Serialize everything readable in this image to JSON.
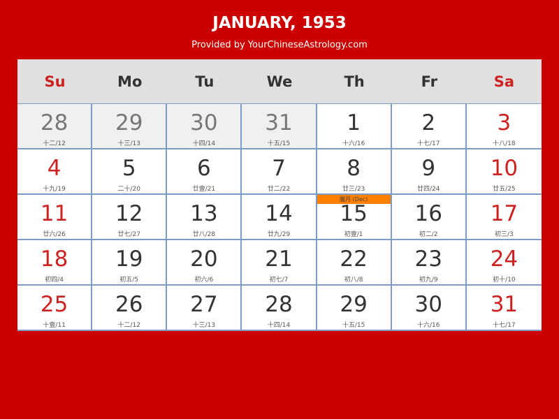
{
  "header": {
    "title": "JANUARY, 1953",
    "subtitle": "Provided by YourChineseAstrology.com"
  },
  "colors": {
    "background": "#cc0000",
    "weekend": "#cc2222",
    "month_marker": "#ff7f00",
    "grid_line": "#7a9cc6"
  },
  "weekdays": [
    "Su",
    "Mo",
    "Tu",
    "We",
    "Th",
    "Fr",
    "Sa"
  ],
  "days": [
    {
      "day": "28",
      "lunar": "十二/12",
      "other": true
    },
    {
      "day": "29",
      "lunar": "十三/13",
      "other": true
    },
    {
      "day": "30",
      "lunar": "十四/14",
      "other": true
    },
    {
      "day": "31",
      "lunar": "十五/15",
      "other": true
    },
    {
      "day": "1",
      "lunar": "十六/16"
    },
    {
      "day": "2",
      "lunar": "十七/17"
    },
    {
      "day": "3",
      "lunar": "十八/18"
    },
    {
      "day": "4",
      "lunar": "十九/19"
    },
    {
      "day": "5",
      "lunar": "二十/20"
    },
    {
      "day": "6",
      "lunar": "廿壹/21"
    },
    {
      "day": "7",
      "lunar": "廿二/22"
    },
    {
      "day": "8",
      "lunar": "廿三/23"
    },
    {
      "day": "9",
      "lunar": "廿四/24"
    },
    {
      "day": "10",
      "lunar": "廿五/25"
    },
    {
      "day": "11",
      "lunar": "廿六/26"
    },
    {
      "day": "12",
      "lunar": "廿七/27"
    },
    {
      "day": "13",
      "lunar": "廿八/28"
    },
    {
      "day": "14",
      "lunar": "廿九/29"
    },
    {
      "day": "15",
      "lunar": "初壹/1",
      "month_label": "臘月 (Dec)"
    },
    {
      "day": "16",
      "lunar": "初二/2"
    },
    {
      "day": "17",
      "lunar": "初三/3"
    },
    {
      "day": "18",
      "lunar": "初四/4"
    },
    {
      "day": "19",
      "lunar": "初五/5"
    },
    {
      "day": "20",
      "lunar": "初六/6"
    },
    {
      "day": "21",
      "lunar": "初七/7"
    },
    {
      "day": "22",
      "lunar": "初八/8"
    },
    {
      "day": "23",
      "lunar": "初九/9"
    },
    {
      "day": "24",
      "lunar": "初十/10"
    },
    {
      "day": "25",
      "lunar": "十壹/11"
    },
    {
      "day": "26",
      "lunar": "十二/12"
    },
    {
      "day": "27",
      "lunar": "十三/13"
    },
    {
      "day": "28",
      "lunar": "十四/14"
    },
    {
      "day": "29",
      "lunar": "十五/15"
    },
    {
      "day": "30",
      "lunar": "十六/16"
    },
    {
      "day": "31",
      "lunar": "十七/17"
    }
  ]
}
